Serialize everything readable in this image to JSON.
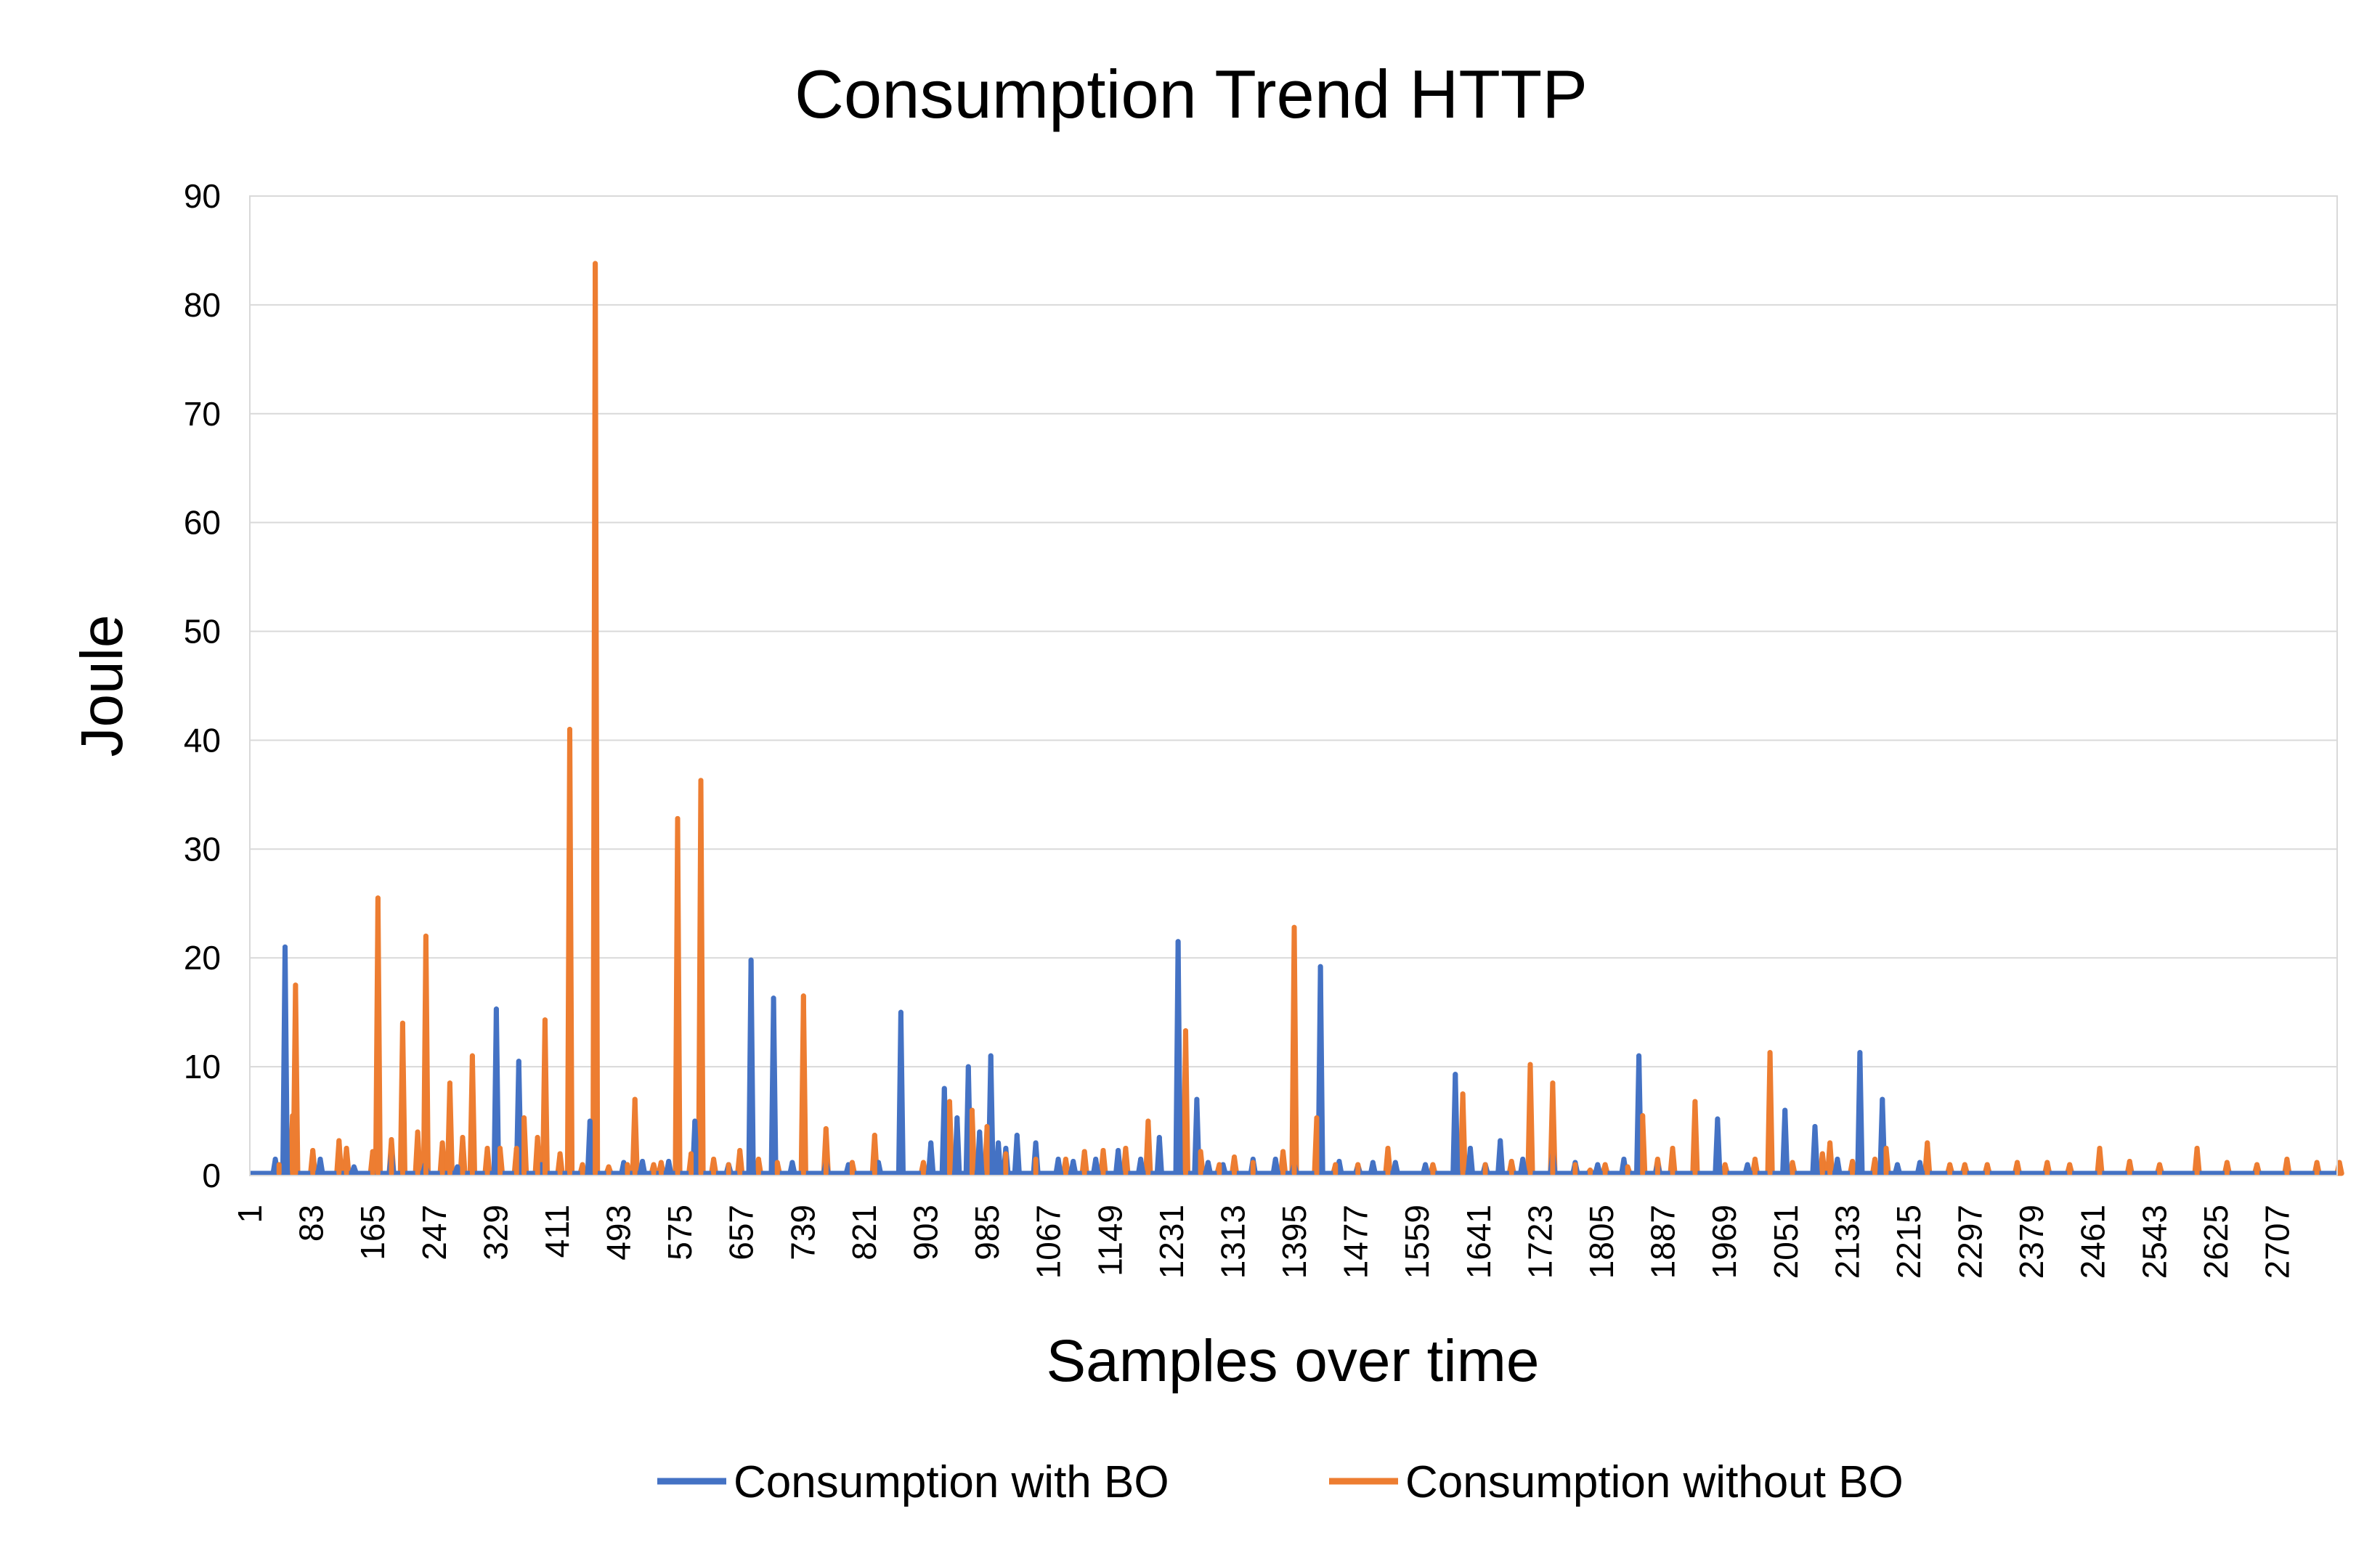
{
  "chart_data": {
    "type": "line",
    "title": "Consumption Trend HTTP",
    "xlabel": "Samples over time",
    "ylabel": "Joule",
    "ylim": [
      0,
      90
    ],
    "xlim": [
      1,
      2787
    ],
    "yticks": [
      0,
      10,
      20,
      30,
      40,
      50,
      60,
      70,
      80,
      90
    ],
    "xtick_labels": [
      "1",
      "83",
      "165",
      "247",
      "329",
      "411",
      "493",
      "575",
      "657",
      "739",
      "821",
      "903",
      "985",
      "1067",
      "1149",
      "1231",
      "1313",
      "1395",
      "1477",
      "1559",
      "1641",
      "1723",
      "1805",
      "1887",
      "1969",
      "2051",
      "2133",
      "2215",
      "2297",
      "2379",
      "2461",
      "2543",
      "2625",
      "2707"
    ],
    "grid": true,
    "legend_position": "bottom",
    "baseline": 0.2,
    "series": [
      {
        "name": "Consumption with BO",
        "color": "#4472c4",
        "peaks": [
          [
            35,
            1.5
          ],
          [
            48,
            21
          ],
          [
            95,
            1.5
          ],
          [
            140,
            0.8
          ],
          [
            190,
            2
          ],
          [
            235,
            1
          ],
          [
            278,
            0.8
          ],
          [
            330,
            15.3
          ],
          [
            360,
            10.5
          ],
          [
            390,
            1
          ],
          [
            455,
            5
          ],
          [
            500,
            1.2
          ],
          [
            525,
            1.3
          ],
          [
            560,
            1.3
          ],
          [
            595,
            5
          ],
          [
            640,
            1
          ],
          [
            670,
            19.8
          ],
          [
            700,
            16.3
          ],
          [
            725,
            1.2
          ],
          [
            770,
            1.2
          ],
          [
            800,
            1
          ],
          [
            840,
            1.2
          ],
          [
            870,
            15
          ],
          [
            910,
            3
          ],
          [
            928,
            8
          ],
          [
            945,
            5.3
          ],
          [
            960,
            10
          ],
          [
            975,
            4
          ],
          [
            990,
            11
          ],
          [
            1000,
            3
          ],
          [
            1010,
            2.5
          ],
          [
            1025,
            3.7
          ],
          [
            1050,
            3
          ],
          [
            1080,
            1.5
          ],
          [
            1100,
            1.3
          ],
          [
            1130,
            1.5
          ],
          [
            1160,
            2.3
          ],
          [
            1190,
            1.5
          ],
          [
            1215,
            3.5
          ],
          [
            1240,
            21.5
          ],
          [
            1265,
            7
          ],
          [
            1280,
            1.2
          ],
          [
            1300,
            1
          ],
          [
            1340,
            1.5
          ],
          [
            1370,
            1.5
          ],
          [
            1395,
            1
          ],
          [
            1430,
            19.2
          ],
          [
            1455,
            1.3
          ],
          [
            1480,
            0.8
          ],
          [
            1500,
            1.2
          ],
          [
            1530,
            1.2
          ],
          [
            1570,
            1
          ],
          [
            1610,
            9.3
          ],
          [
            1630,
            2.5
          ],
          [
            1650,
            1
          ],
          [
            1670,
            3.2
          ],
          [
            1700,
            1.5
          ],
          [
            1740,
            2
          ],
          [
            1770,
            1.2
          ],
          [
            1800,
            1
          ],
          [
            1835,
            1.5
          ],
          [
            1855,
            11
          ],
          [
            1880,
            1
          ],
          [
            1960,
            5.2
          ],
          [
            2000,
            1
          ],
          [
            2050,
            6
          ],
          [
            2090,
            4.5
          ],
          [
            2120,
            1.5
          ],
          [
            2150,
            11.3
          ],
          [
            2180,
            7
          ],
          [
            2200,
            1
          ],
          [
            2230,
            1.2
          ]
        ]
      },
      {
        "name": "Consumption without BO",
        "color": "#ed7d31",
        "peaks": [
          [
            40,
            1
          ],
          [
            58,
            5.5
          ],
          [
            62,
            17.5
          ],
          [
            85,
            2.3
          ],
          [
            120,
            3.2
          ],
          [
            130,
            2.5
          ],
          [
            165,
            2.2
          ],
          [
            172,
            25.5
          ],
          [
            190,
            3.3
          ],
          [
            205,
            14
          ],
          [
            225,
            4
          ],
          [
            236,
            22
          ],
          [
            258,
            3
          ],
          [
            268,
            8.5
          ],
          [
            285,
            3.5
          ],
          [
            298,
            11
          ],
          [
            318,
            2.5
          ],
          [
            335,
            2.5
          ],
          [
            357,
            2.5
          ],
          [
            367,
            5.3
          ],
          [
            385,
            3.5
          ],
          [
            395,
            14.3
          ],
          [
            415,
            2
          ],
          [
            428,
            41
          ],
          [
            445,
            1
          ],
          [
            462,
            83.8
          ],
          [
            480,
            0.8
          ],
          [
            505,
            1
          ],
          [
            515,
            7
          ],
          [
            540,
            1
          ],
          [
            550,
            1.2
          ],
          [
            572,
            32.8
          ],
          [
            590,
            2
          ],
          [
            603,
            36.3
          ],
          [
            620,
            1.5
          ],
          [
            640,
            1
          ],
          [
            655,
            2.3
          ],
          [
            680,
            1.5
          ],
          [
            705,
            1.2
          ],
          [
            740,
            16.5
          ],
          [
            770,
            4.3
          ],
          [
            805,
            1.2
          ],
          [
            835,
            3.7
          ],
          [
            900,
            1.2
          ],
          [
            935,
            6.8
          ],
          [
            965,
            6
          ],
          [
            985,
            4.5
          ],
          [
            1010,
            2
          ],
          [
            1050,
            1.5
          ],
          [
            1090,
            1.5
          ],
          [
            1115,
            2.2
          ],
          [
            1140,
            2.3
          ],
          [
            1170,
            2.5
          ],
          [
            1200,
            5
          ],
          [
            1250,
            13.3
          ],
          [
            1270,
            2.2
          ],
          [
            1295,
            1
          ],
          [
            1315,
            1.7
          ],
          [
            1340,
            1.2
          ],
          [
            1380,
            2.2
          ],
          [
            1395,
            22.8
          ],
          [
            1425,
            5.3
          ],
          [
            1450,
            1
          ],
          [
            1480,
            1
          ],
          [
            1520,
            2.5
          ],
          [
            1580,
            1
          ],
          [
            1620,
            7.5
          ],
          [
            1650,
            1
          ],
          [
            1685,
            1.3
          ],
          [
            1710,
            10.2
          ],
          [
            1740,
            8.5
          ],
          [
            1770,
            1
          ],
          [
            1790,
            0.5
          ],
          [
            1810,
            1
          ],
          [
            1840,
            0.8
          ],
          [
            1860,
            5.5
          ],
          [
            1880,
            1.5
          ],
          [
            1900,
            2.5
          ],
          [
            1930,
            6.8
          ],
          [
            1970,
            1
          ],
          [
            2010,
            1.5
          ],
          [
            2030,
            11.3
          ],
          [
            2060,
            1.2
          ],
          [
            2100,
            2
          ],
          [
            2110,
            3
          ],
          [
            2140,
            1.3
          ],
          [
            2170,
            1.5
          ],
          [
            2185,
            2.5
          ],
          [
            2240,
            3
          ],
          [
            2270,
            1
          ],
          [
            2290,
            1
          ],
          [
            2320,
            1
          ],
          [
            2360,
            1.2
          ],
          [
            2400,
            1.2
          ],
          [
            2430,
            1
          ],
          [
            2470,
            2.5
          ],
          [
            2510,
            1.3
          ],
          [
            2550,
            1
          ],
          [
            2600,
            2.5
          ],
          [
            2640,
            1.2
          ],
          [
            2680,
            1
          ],
          [
            2720,
            1.5
          ],
          [
            2760,
            1.2
          ],
          [
            2790,
            1.2
          ]
        ]
      }
    ]
  }
}
